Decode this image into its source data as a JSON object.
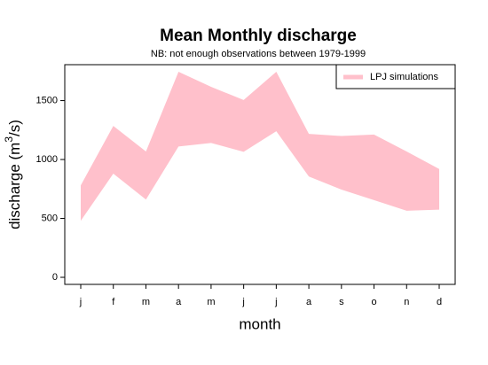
{
  "chart_data": {
    "type": "band",
    "title": "Mean Monthly discharge",
    "subtitle": "NB: not enough observations between 1979-1999",
    "x_label": "month",
    "y_label": [
      "discharge (m",
      "3",
      "/s)"
    ],
    "categories": [
      "j",
      "f",
      "m",
      "a",
      "m",
      "j",
      "j",
      "a",
      "s",
      "o",
      "n",
      "d"
    ],
    "series": [
      {
        "name": "LPJ simulations",
        "color": "#ffc0cb",
        "lower": [
          480,
          880,
          660,
          1110,
          1140,
          1065,
          1240,
          855,
          745,
          655,
          565,
          575
        ],
        "upper": [
          780,
          1285,
          1068,
          1745,
          1617,
          1505,
          1745,
          1218,
          1200,
          1212,
          1068,
          920
        ]
      }
    ],
    "ylim": [
      -60,
      1805
    ],
    "yticks": [
      0,
      500,
      1000,
      1500
    ],
    "legend": "top-right"
  }
}
